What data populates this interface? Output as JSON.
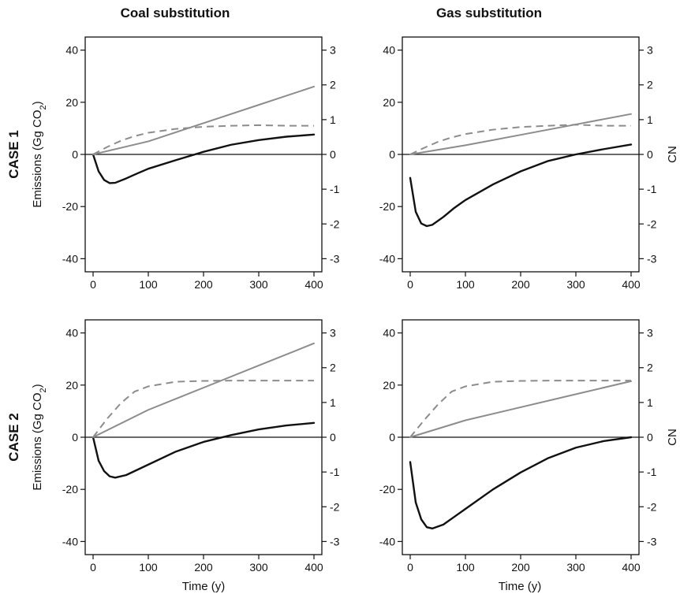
{
  "figure": {
    "column_titles": [
      "Coal substitution",
      "Gas substitution"
    ],
    "row_titles": [
      "CASE 1",
      "CASE 2"
    ],
    "y_label_main": "Emissions (Gg CO",
    "y_label_sub": "2",
    "y_label_close": ")",
    "x_label": "Time (y)",
    "right_axis_label": "CN"
  },
  "chart_data": [
    {
      "type": "line",
      "panel": "CASE 1 - Coal substitution",
      "xlim": [
        0,
        400
      ],
      "ylim": [
        -42,
        42
      ],
      "y2lim": [
        -3.15,
        3.15
      ],
      "xticks": [
        0,
        100,
        200,
        300,
        400
      ],
      "yticks": [
        -40,
        -20,
        0,
        20,
        40
      ],
      "y2ticks": [
        -3,
        -2,
        -1,
        0,
        1,
        2,
        3
      ],
      "series": [
        {
          "axis": "left",
          "style": "solid-black",
          "x": [
            0,
            10,
            20,
            30,
            40,
            60,
            80,
            100,
            150,
            200,
            250,
            300,
            350,
            400
          ],
          "y": [
            0,
            -6.5,
            -9.8,
            -11,
            -10.9,
            -9.2,
            -7.3,
            -5.5,
            -2.2,
            1,
            3.7,
            5.5,
            6.8,
            7.6
          ]
        },
        {
          "axis": "left",
          "style": "solid-gray",
          "x": [
            0,
            100,
            200,
            300,
            400
          ],
          "y": [
            0,
            5,
            12,
            19,
            26
          ]
        },
        {
          "axis": "left",
          "style": "dashed-gray",
          "x": [
            0,
            25,
            50,
            75,
            100,
            150,
            200,
            250,
            300,
            350,
            400
          ],
          "y": [
            0,
            2.8,
            5.2,
            7,
            8.3,
            9.8,
            10.6,
            11,
            11.2,
            11,
            11
          ]
        }
      ]
    },
    {
      "type": "line",
      "panel": "CASE 1 - Gas substitution",
      "xlim": [
        0,
        400
      ],
      "ylim": [
        -42,
        42
      ],
      "y2lim": [
        -3.15,
        3.15
      ],
      "xticks": [
        0,
        100,
        200,
        300,
        400
      ],
      "yticks": [
        -40,
        -20,
        0,
        20,
        40
      ],
      "y2ticks": [
        -3,
        -2,
        -1,
        0,
        1,
        2,
        3
      ],
      "series": [
        {
          "axis": "left",
          "style": "solid-black",
          "x": [
            0,
            10,
            20,
            30,
            40,
            60,
            80,
            100,
            150,
            200,
            250,
            300,
            350,
            400
          ],
          "y": [
            -9,
            -22,
            -26.5,
            -27.5,
            -27,
            -24,
            -20.5,
            -17.5,
            -11.5,
            -6.5,
            -2.5,
            0,
            2,
            3.8
          ]
        },
        {
          "axis": "left",
          "style": "solid-gray",
          "x": [
            0,
            100,
            200,
            300,
            400
          ],
          "y": [
            0,
            3.5,
            7.5,
            11.5,
            15.5
          ]
        },
        {
          "axis": "left",
          "style": "dashed-gray",
          "x": [
            0,
            25,
            50,
            75,
            100,
            150,
            200,
            250,
            300,
            350,
            400
          ],
          "y": [
            0,
            2.5,
            4.8,
            6.5,
            7.8,
            9.5,
            10.5,
            11,
            11.4,
            11,
            11
          ]
        }
      ]
    },
    {
      "type": "line",
      "panel": "CASE 2 - Coal substitution",
      "xlim": [
        0,
        400
      ],
      "ylim": [
        -42,
        42
      ],
      "y2lim": [
        -3.15,
        3.15
      ],
      "xticks": [
        0,
        100,
        200,
        300,
        400
      ],
      "yticks": [
        -40,
        -20,
        0,
        20,
        40
      ],
      "y2ticks": [
        -3,
        -2,
        -1,
        0,
        1,
        2,
        3
      ],
      "series": [
        {
          "axis": "left",
          "style": "solid-black",
          "x": [
            0,
            10,
            20,
            30,
            40,
            60,
            80,
            100,
            150,
            200,
            250,
            300,
            350,
            400
          ],
          "y": [
            0,
            -9,
            -13,
            -15,
            -15.5,
            -14.5,
            -12.5,
            -10.5,
            -5.5,
            -1.8,
            0.8,
            3,
            4.5,
            5.5
          ]
        },
        {
          "axis": "left",
          "style": "solid-gray",
          "x": [
            0,
            100,
            200,
            300,
            400
          ],
          "y": [
            0,
            10.5,
            19,
            27.5,
            36
          ]
        },
        {
          "axis": "left",
          "style": "dashed-gray",
          "x": [
            0,
            25,
            50,
            75,
            100,
            150,
            200,
            250,
            300,
            350,
            400
          ],
          "y": [
            0,
            7,
            13,
            17.5,
            19.5,
            21.3,
            21.6,
            21.7,
            21.7,
            21.7,
            21.7
          ]
        }
      ]
    },
    {
      "type": "line",
      "panel": "CASE 2 - Gas substitution",
      "xlim": [
        0,
        400
      ],
      "ylim": [
        -42,
        42
      ],
      "y2lim": [
        -3.15,
        3.15
      ],
      "xticks": [
        0,
        100,
        200,
        300,
        400
      ],
      "yticks": [
        -40,
        -20,
        0,
        20,
        40
      ],
      "y2ticks": [
        -3,
        -2,
        -1,
        0,
        1,
        2,
        3
      ],
      "series": [
        {
          "axis": "left",
          "style": "solid-black",
          "x": [
            0,
            10,
            20,
            30,
            40,
            60,
            80,
            100,
            150,
            200,
            250,
            300,
            350,
            400
          ],
          "y": [
            -9.5,
            -25,
            -31.5,
            -34.5,
            -35,
            -33.5,
            -30.5,
            -27.5,
            -20,
            -13.5,
            -8,
            -4,
            -1.5,
            0
          ]
        },
        {
          "axis": "left",
          "style": "solid-gray",
          "x": [
            0,
            100,
            200,
            300,
            400
          ],
          "y": [
            0,
            6.5,
            11.5,
            16.5,
            21.5
          ]
        },
        {
          "axis": "left",
          "style": "dashed-gray",
          "x": [
            0,
            25,
            50,
            75,
            100,
            150,
            200,
            250,
            300,
            350,
            400
          ],
          "y": [
            0,
            6.5,
            12.5,
            17.5,
            19.5,
            21.3,
            21.6,
            21.7,
            21.7,
            21.7,
            21.7
          ]
        }
      ]
    }
  ],
  "colors": {
    "black_line": "#111111",
    "gray_line": "#8c8c8c",
    "axis": "#111111"
  }
}
